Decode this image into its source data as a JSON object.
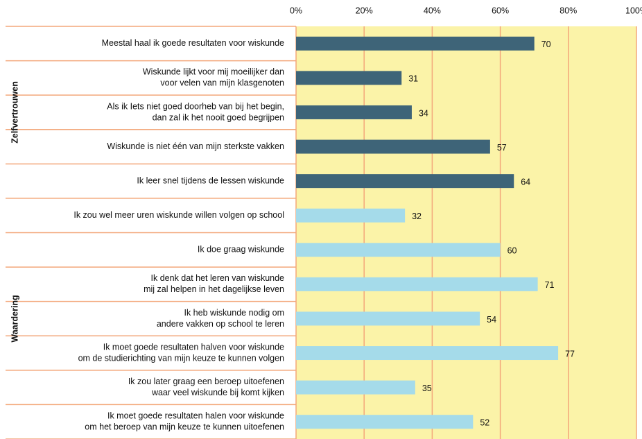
{
  "chart_data": {
    "type": "bar",
    "orientation": "horizontal",
    "xlim": [
      0,
      100
    ],
    "xticks": [
      {
        "value": 0,
        "label": "0%"
      },
      {
        "value": 20,
        "label": "20%"
      },
      {
        "value": 40,
        "label": "40%"
      },
      {
        "value": 60,
        "label": "60%"
      },
      {
        "value": 80,
        "label": "80%"
      },
      {
        "value": 100,
        "label": "100%"
      }
    ],
    "grid": true,
    "groups": [
      {
        "name": "Zelfvertrouwen",
        "color": "#3e6478",
        "categories": [
          [
            "Meestal haal ik goede resultaten voor wiskunde"
          ],
          [
            "Wiskunde lijkt voor mij moeilijker dan",
            "voor velen van mijn klasgenoten"
          ],
          [
            "Als ik Iets niet goed doorheb van bij het begin,",
            "dan zal ik het nooit goed begrijpen"
          ],
          [
            "Wiskunde is niet één van mijn sterkste vakken"
          ],
          [
            "Ik leer snel tijdens de lessen wiskunde"
          ]
        ],
        "values": [
          70,
          31,
          34,
          57,
          64
        ]
      },
      {
        "name": "Waardering",
        "color": "#a5dbea",
        "categories": [
          [
            "Ik zou wel meer uren wiskunde willen volgen op school"
          ],
          [
            "Ik doe graag wiskunde"
          ],
          [
            "Ik denk dat het leren van wiskunde",
            "mij zal helpen in het dagelijkse leven"
          ],
          [
            "Ik heb wiskunde nodig om",
            "andere vakken op school te leren"
          ],
          [
            "Ik moet goede resultaten halven voor wiskunde",
            "om de studierichting van mijn keuze te kunnen volgen"
          ],
          [
            "Ik zou later graag een beroep uitoefenen",
            "waar veel wiskunde bij komt kijken"
          ],
          [
            "Ik moet goede resultaten halen voor wiskunde",
            "om het beroep van mijn keuze te kunnen uitoefenen"
          ]
        ],
        "values": [
          32,
          60,
          71,
          54,
          77,
          35,
          52
        ]
      }
    ]
  }
}
